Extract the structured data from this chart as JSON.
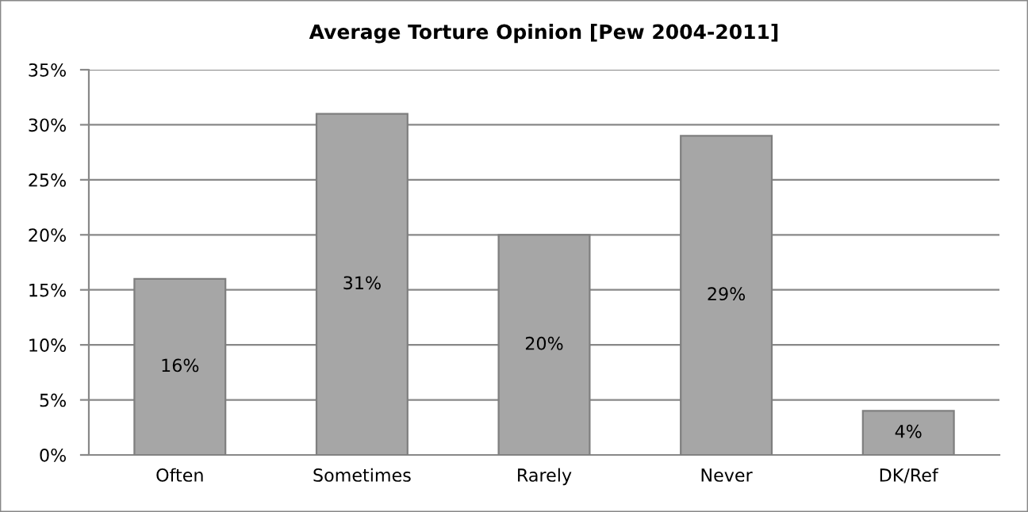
{
  "chart_data": {
    "type": "bar",
    "title": "Average Torture Opinion [Pew 2004-2011]",
    "categories": [
      "Often",
      "Sometimes",
      "Rarely",
      "Never",
      "DK/Ref"
    ],
    "values": [
      16,
      31,
      20,
      29,
      4
    ],
    "value_labels": [
      "16%",
      "31%",
      "20%",
      "29%",
      "4%"
    ],
    "color": "#a6a6a6",
    "ylim": [
      0,
      35
    ],
    "yticks": [
      {
        "value": 0,
        "label": "0%"
      },
      {
        "value": 5,
        "label": "5%"
      },
      {
        "value": 10,
        "label": "10%"
      },
      {
        "value": 15,
        "label": "15%"
      },
      {
        "value": 20,
        "label": "20%"
      },
      {
        "value": 25,
        "label": "25%"
      },
      {
        "value": 30,
        "label": "30%"
      },
      {
        "value": 35,
        "label": "35%"
      }
    ],
    "grid": "y",
    "legend": false
  }
}
